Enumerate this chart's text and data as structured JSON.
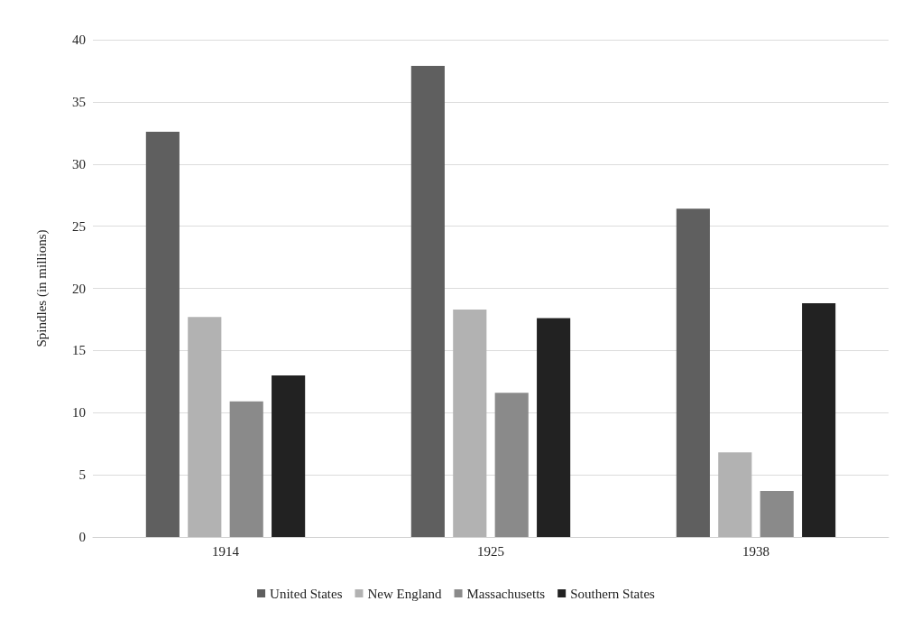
{
  "chart_data": {
    "type": "bar",
    "ylabel": "Spindles (in millions)",
    "categories": [
      "1914",
      "1925",
      "1938"
    ],
    "series": [
      {
        "name": "United States",
        "color": "#5f5f5f",
        "values": [
          32.6,
          37.9,
          26.4
        ]
      },
      {
        "name": "New England",
        "color": "#b2b2b2",
        "values": [
          17.7,
          18.3,
          6.8
        ]
      },
      {
        "name": "Massachusetts",
        "color": "#8a8a8a",
        "values": [
          10.9,
          11.6,
          3.7
        ]
      },
      {
        "name": "Southern States",
        "color": "#222222",
        "values": [
          13.0,
          17.6,
          18.8
        ]
      }
    ],
    "ylim": [
      0,
      40
    ],
    "yticks": [
      0,
      5,
      10,
      15,
      20,
      25,
      30,
      35,
      40
    ],
    "grid": "y",
    "legend": "bottom"
  }
}
